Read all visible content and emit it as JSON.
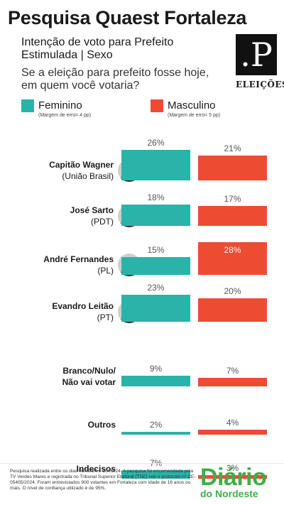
{
  "header": {
    "title": "Pesquisa Quaest Fortaleza",
    "subtitle": "Intenção de voto para Prefeito Estimulada | Sexo",
    "question": "Se a eleição para prefeito fosse hoje, em quem você votaria?"
  },
  "logo": {
    "mark": ".P",
    "tag": "ELEIÇÕES"
  },
  "colors": {
    "female": "#2ab3a8",
    "male": "#ee4b33"
  },
  "chart_data": {
    "type": "bar",
    "categories": [
      "Capitão Wagner (União Brasil)",
      "José Sarto (PDT)",
      "André Fernandes (PL)",
      "Evandro Leitão (PT)",
      "Branco/Nulo/Não vai votar",
      "Outros",
      "Indecisos"
    ],
    "series": [
      {
        "name": "Feminino",
        "margin": "(Margem de erro= 4 pp)",
        "values": [
          26,
          18,
          15,
          23,
          9,
          2,
          7
        ],
        "labels": [
          "26%",
          "18%",
          "15%",
          "23%",
          "9%",
          "2%",
          "7%"
        ]
      },
      {
        "name": "Masculino",
        "margin": "(Margem de erro= 5 pp)",
        "values": [
          21,
          17,
          28,
          20,
          7,
          4,
          3
        ],
        "labels": [
          "21%",
          "17%",
          "28%",
          "20%",
          "7%",
          "4%",
          "3%"
        ]
      }
    ],
    "legend_position": "top"
  },
  "candidates": [
    {
      "name": "Capitão Wagner",
      "party": "(União Brasil)"
    },
    {
      "name": "José Sarto",
      "party": "(PDT)"
    },
    {
      "name": "André Fernandes",
      "party": "(PL)"
    },
    {
      "name": "Evandro Leitão",
      "party": "(PT)"
    },
    {
      "name": "Branco/Nulo/\nNão vai votar",
      "party": ""
    },
    {
      "name": "Outros",
      "party": ""
    },
    {
      "name": "Indecisos",
      "party": ""
    }
  ],
  "footer": {
    "note": "Pesquisa realizada entre os dias 08/09/24 e 10/09/24. A pesquisa foi encomendada pela TV Verdes Mares e registrada no Tribunal Superior Eleitoral (TSE) sob o protocolo nº CE-05405/2024. Foram entrevistados 900 votantes em Fortaleza com idade de 16 anos ou mais. O nível de confiança utilizado é de 95%.",
    "brand_top": "Diário",
    "brand_bottom": "do Nordeste"
  }
}
